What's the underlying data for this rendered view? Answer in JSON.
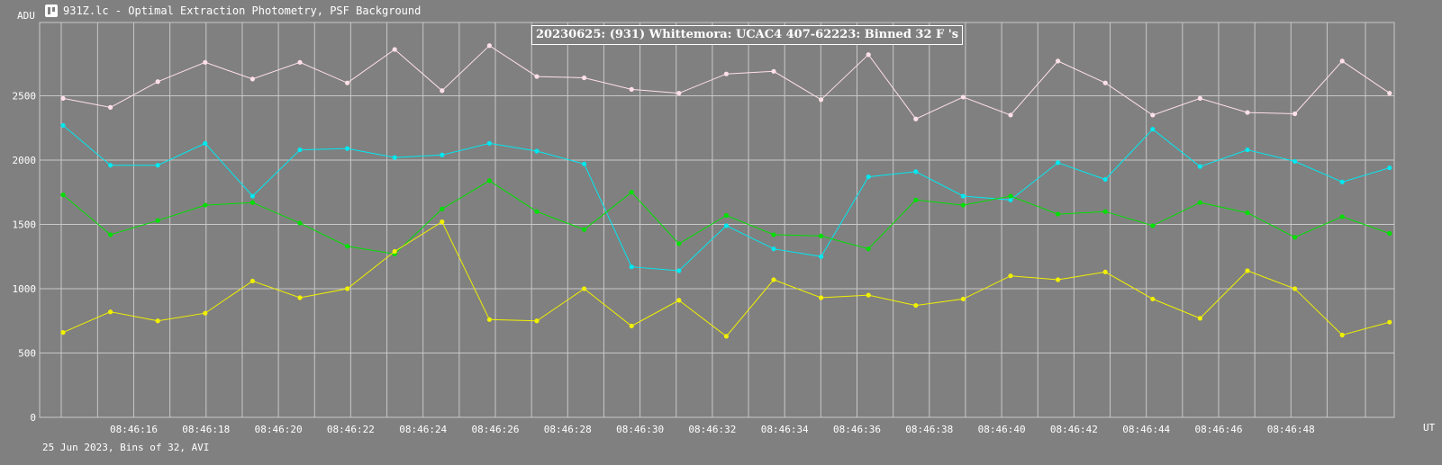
{
  "window": {
    "title": "931Z.lc - Optimal Extraction Photometry, PSF Background",
    "icon": "lightcurve-app-icon"
  },
  "footer": {
    "text": "25 Jun 2023, Bins of 32, AVI"
  },
  "colors": {
    "background": "#808080",
    "grid": "#c8c8c8",
    "text": "#ffffff"
  },
  "chart_data": {
    "type": "line",
    "title": "20230625: (931) Whittemora: UCAC4 407-62223: Binned 32 F 's",
    "ylabel": "ADU",
    "xlabel": "UT",
    "ylim": [
      0,
      3000
    ],
    "yticks": [
      0,
      500,
      1000,
      1500,
      2000,
      2500
    ],
    "grid": true,
    "xtick_labels": [
      "08:46:16",
      "08:46:18",
      "08:46:20",
      "08:46:22",
      "08:46:24",
      "08:46:26",
      "08:46:28",
      "08:46:30",
      "08:46:32",
      "08:46:34",
      "08:46:36",
      "08:46:38",
      "08:46:40",
      "08:46:42",
      "08:46:44",
      "08:46:46",
      "08:46:48"
    ],
    "series": [
      {
        "color": "#ffe0e8",
        "values": [
          2480,
          2410,
          2610,
          2760,
          2630,
          2760,
          2600,
          2860,
          2540,
          2890,
          2650,
          2640,
          2550,
          2520,
          2670,
          2690,
          2470,
          2820,
          2320,
          2490,
          2350,
          2770,
          2600,
          2350,
          2480,
          2370,
          2360,
          2770,
          2520
        ]
      },
      {
        "color": "#00e8f0",
        "values": [
          2270,
          1960,
          1960,
          2130,
          1720,
          2080,
          2090,
          2020,
          2040,
          2130,
          2070,
          1970,
          1170,
          1140,
          1490,
          1310,
          1250,
          1870,
          1910,
          1720,
          1690,
          1980,
          1850,
          2240,
          1950,
          2080,
          1990,
          1830,
          1940
        ]
      },
      {
        "color": "#00e000",
        "values": [
          1730,
          1420,
          1530,
          1650,
          1670,
          1510,
          1330,
          1270,
          1620,
          1840,
          1600,
          1460,
          1750,
          1350,
          1570,
          1420,
          1410,
          1310,
          1690,
          1650,
          1720,
          1580,
          1600,
          1490,
          1670,
          1590,
          1400,
          1560,
          1430
        ]
      },
      {
        "color": "#f0f000",
        "values": [
          660,
          820,
          750,
          810,
          1060,
          930,
          1000,
          1290,
          1520,
          760,
          750,
          1000,
          710,
          910,
          630,
          1070,
          930,
          950,
          870,
          920,
          1100,
          1070,
          1130,
          920,
          770,
          1140,
          1000,
          640,
          740
        ]
      }
    ]
  }
}
